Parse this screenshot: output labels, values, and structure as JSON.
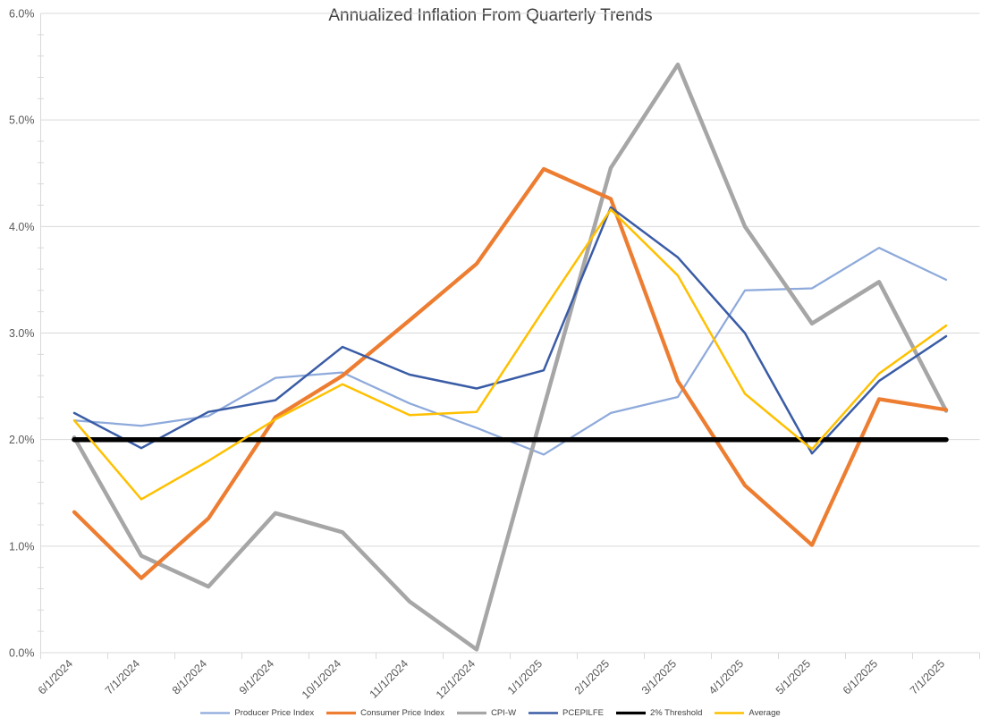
{
  "chart_data": {
    "type": "line",
    "title": "Annualized Inflation From Quarterly Trends",
    "xlabel": "",
    "ylabel": "",
    "categories": [
      "6/1/2024",
      "7/1/2024",
      "8/1/2024",
      "9/1/2024",
      "10/1/2024",
      "11/1/2024",
      "12/1/2024",
      "1/1/2025",
      "2/1/2025",
      "3/1/2025",
      "4/1/2025",
      "5/1/2025",
      "6/1/2025",
      "7/1/2025"
    ],
    "series": [
      {
        "name": "Producer Price Index",
        "color": "#8EAADB",
        "width": 2.25,
        "values": [
          2.18,
          2.13,
          2.22,
          2.58,
          2.63,
          2.34,
          2.11,
          1.86,
          2.25,
          2.4,
          3.4,
          3.42,
          3.8,
          3.5
        ]
      },
      {
        "name": "Consumer Price Index",
        "color": "#ED7D31",
        "width": 4.25,
        "values": [
          1.32,
          0.7,
          1.26,
          2.21,
          2.6,
          3.12,
          3.65,
          4.54,
          4.26,
          2.55,
          1.57,
          1.01,
          2.38,
          2.28
        ]
      },
      {
        "name": "CPI-W",
        "color": "#A6A6A6",
        "width": 4.5,
        "values": [
          2.02,
          0.91,
          0.62,
          1.31,
          1.13,
          0.48,
          0.03,
          2.3,
          4.55,
          5.52,
          4.0,
          3.09,
          3.48,
          2.27
        ]
      },
      {
        "name": "PCEPILFE",
        "color": "#3A5CA6",
        "width": 2.5,
        "values": [
          2.25,
          1.92,
          2.26,
          2.37,
          2.87,
          2.61,
          2.48,
          2.65,
          4.18,
          3.71,
          3.0,
          1.87,
          2.55,
          2.97
        ]
      },
      {
        "name": "2% Threshold",
        "color": "#000000",
        "width": 5.5,
        "values": [
          2.0,
          2.0,
          2.0,
          2.0,
          2.0,
          2.0,
          2.0,
          2.0,
          2.0,
          2.0,
          2.0,
          2.0,
          2.0,
          2.0
        ]
      },
      {
        "name": "Average",
        "color": "#FFC000",
        "width": 2.5,
        "values": [
          2.18,
          1.44,
          1.8,
          2.19,
          2.52,
          2.23,
          2.26,
          3.22,
          4.16,
          3.54,
          2.43,
          1.91,
          2.62,
          3.07
        ]
      }
    ],
    "draw_order": [
      "Producer Price Index",
      "CPI-W",
      "Consumer Price Index",
      "PCEPILFE",
      "2% Threshold",
      "Average"
    ],
    "ylim": [
      0,
      6
    ],
    "y_major_unit": 1.0,
    "y_minor_unit": 0.2,
    "y_tick_labels": [
      "0.0%",
      "1.0%",
      "2.0%",
      "3.0%",
      "4.0%",
      "5.0%",
      "6.0%"
    ],
    "grid": "horizontal-major",
    "legend_position": "bottom",
    "x_label_rotation": -45
  },
  "colors": {
    "background": "#FFFFFF",
    "gridline": "#D9D9D9",
    "axis_line": "#D9D9D9",
    "tick_label": "#595959",
    "title": "#404040",
    "legend_text": "#404040"
  }
}
